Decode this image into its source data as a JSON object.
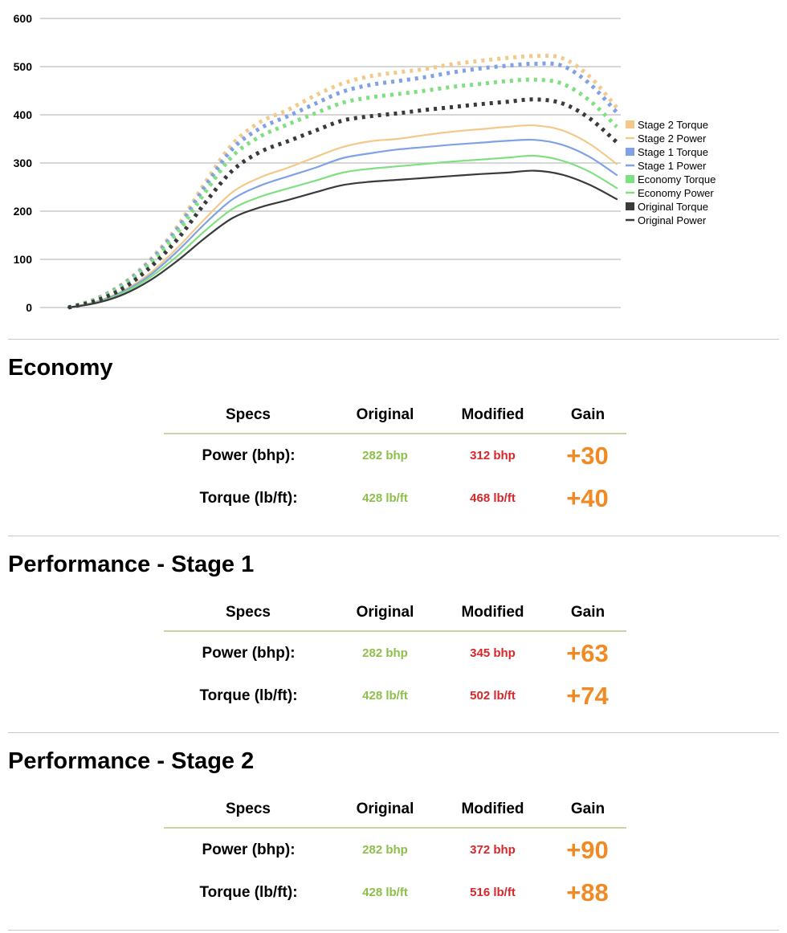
{
  "chart_data": {
    "type": "line",
    "title": "",
    "xlabel": "",
    "ylabel": "",
    "ylim": [
      0,
      600
    ],
    "yticks": [
      0,
      100,
      200,
      300,
      400,
      500,
      600
    ],
    "grid": true,
    "legend_position": "right",
    "x": [
      0,
      5,
      10,
      15,
      20,
      25,
      30,
      35,
      40,
      45,
      50,
      55,
      60,
      65,
      70,
      75,
      80,
      85,
      90,
      95,
      100
    ],
    "series": [
      {
        "name": "Stage 2 Torque",
        "style": "dotted",
        "color": "#f3c98b",
        "values": [
          0,
          18,
          50,
          100,
          170,
          260,
          340,
          385,
          410,
          440,
          465,
          480,
          488,
          495,
          505,
          512,
          518,
          522,
          518,
          480,
          415
        ]
      },
      {
        "name": "Stage 2 Power",
        "style": "solid",
        "color": "#f3c98b",
        "values": [
          0,
          12,
          35,
          72,
          125,
          185,
          240,
          270,
          290,
          312,
          333,
          345,
          350,
          358,
          365,
          370,
          375,
          378,
          368,
          340,
          298
        ]
      },
      {
        "name": "Stage 1 Torque",
        "style": "dotted",
        "color": "#7fa1e6",
        "values": [
          0,
          17,
          48,
          97,
          165,
          252,
          330,
          372,
          397,
          423,
          448,
          462,
          470,
          478,
          488,
          496,
          502,
          506,
          502,
          465,
          405
        ]
      },
      {
        "name": "Stage 1 Power",
        "style": "solid",
        "color": "#7fa1e6",
        "values": [
          0,
          11,
          33,
          68,
          118,
          175,
          225,
          253,
          272,
          290,
          310,
          320,
          328,
          333,
          338,
          342,
          346,
          348,
          338,
          313,
          275
        ]
      },
      {
        "name": "Economy Torque",
        "style": "dotted",
        "color": "#7ee07f",
        "values": [
          0,
          16,
          45,
          92,
          157,
          240,
          315,
          355,
          380,
          403,
          425,
          436,
          443,
          450,
          458,
          464,
          470,
          473,
          465,
          430,
          375
        ]
      },
      {
        "name": "Economy Power",
        "style": "solid",
        "color": "#7ee07f",
        "values": [
          0,
          10,
          30,
          63,
          108,
          160,
          205,
          230,
          247,
          263,
          280,
          288,
          293,
          298,
          303,
          307,
          311,
          315,
          305,
          282,
          248
        ]
      },
      {
        "name": "Original Torque",
        "style": "dotted",
        "color": "#3a3a3a",
        "values": [
          0,
          14,
          40,
          84,
          143,
          218,
          285,
          323,
          345,
          367,
          388,
          397,
          403,
          410,
          416,
          422,
          427,
          432,
          424,
          393,
          343
        ]
      },
      {
        "name": "Original Power",
        "style": "solid",
        "color": "#3a3a3a",
        "values": [
          0,
          9,
          27,
          57,
          98,
          145,
          186,
          208,
          223,
          239,
          254,
          261,
          265,
          269,
          273,
          277,
          280,
          284,
          276,
          255,
          225
        ]
      }
    ]
  },
  "tables": [
    {
      "title": "Economy",
      "headers": {
        "spec": "Specs",
        "original": "Original",
        "modified": "Modified",
        "gain": "Gain"
      },
      "rows": [
        {
          "label": "Power (bhp):",
          "original": "282 bhp",
          "modified": "312 bhp",
          "gain": "+30"
        },
        {
          "label": "Torque (lb/ft):",
          "original": "428 lb/ft",
          "modified": "468 lb/ft",
          "gain": "+40"
        }
      ]
    },
    {
      "title": "Performance - Stage 1",
      "headers": {
        "spec": "Specs",
        "original": "Original",
        "modified": "Modified",
        "gain": "Gain"
      },
      "rows": [
        {
          "label": "Power (bhp):",
          "original": "282 bhp",
          "modified": "345 bhp",
          "gain": "+63"
        },
        {
          "label": "Torque (lb/ft):",
          "original": "428 lb/ft",
          "modified": "502 lb/ft",
          "gain": "+74"
        }
      ]
    },
    {
      "title": "Performance - Stage 2",
      "headers": {
        "spec": "Specs",
        "original": "Original",
        "modified": "Modified",
        "gain": "Gain"
      },
      "rows": [
        {
          "label": "Power (bhp):",
          "original": "282 bhp",
          "modified": "372 bhp",
          "gain": "+90"
        },
        {
          "label": "Torque (lb/ft):",
          "original": "428 lb/ft",
          "modified": "516 lb/ft",
          "gain": "+88"
        }
      ]
    }
  ],
  "colors": {
    "original_value": "#8dc04a",
    "modified_value": "#d9262b",
    "gain_value": "#f08a24",
    "header_rule": "#c9d3a8",
    "section_rule": "#c8c8c8",
    "gridline": "#c8c8c8"
  }
}
